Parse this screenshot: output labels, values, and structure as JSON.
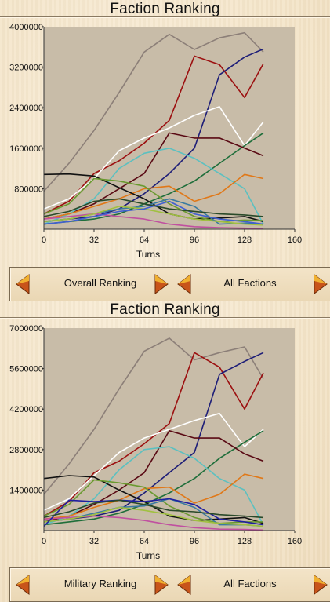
{
  "colors": {
    "plot_bg": "#c8bca8",
    "axis": "#333333"
  },
  "panels": [
    {
      "title": "Faction Ranking",
      "left_control": {
        "label": "Overall Ranking",
        "prev_icon": "triangle-left-icon",
        "next_icon": "triangle-right-icon"
      },
      "right_control": {
        "label": "All Factions",
        "prev_icon": "triangle-left-icon",
        "next_icon": "triangle-right-icon"
      }
    },
    {
      "title": "Faction Ranking",
      "left_control": {
        "label": "Military Ranking",
        "prev_icon": "triangle-left-icon",
        "next_icon": "triangle-right-icon"
      },
      "right_control": {
        "label": "All Factions",
        "prev_icon": "triangle-left-icon",
        "next_icon": "triangle-right-icon"
      }
    }
  ],
  "chart_data": [
    {
      "type": "line",
      "title": "Faction Ranking",
      "xlabel": "Turns",
      "ylabel": "",
      "xlim": [
        0,
        160
      ],
      "ylim": [
        0,
        4000000
      ],
      "xticks": [
        0,
        32,
        64,
        96,
        128,
        160
      ],
      "yticks": [
        800000,
        1600000,
        2400000,
        3200000,
        4000000
      ],
      "ytick_labels": [
        "800000",
        "1600000",
        "2400000",
        "3200000",
        "4000000"
      ],
      "x": [
        0,
        16,
        32,
        48,
        64,
        80,
        96,
        112,
        128,
        140
      ],
      "series": [
        {
          "color": "#8c7f78",
          "values": [
            750000,
            1300000,
            1950000,
            2700000,
            3500000,
            3850000,
            3550000,
            3780000,
            3880000,
            3500000
          ]
        },
        {
          "color": "#9c1010",
          "values": [
            300000,
            550000,
            1100000,
            1350000,
            1700000,
            2150000,
            3420000,
            3250000,
            2600000,
            3270000
          ]
        },
        {
          "color": "#1e1e78",
          "values": [
            150000,
            200000,
            250000,
            400000,
            700000,
            1100000,
            1600000,
            3050000,
            3400000,
            3560000
          ]
        },
        {
          "color": "#ffffff",
          "values": [
            400000,
            600000,
            1000000,
            1550000,
            1800000,
            2000000,
            2250000,
            2420000,
            1650000,
            2120000
          ]
        },
        {
          "color": "#1e6e3a",
          "values": [
            100000,
            150000,
            200000,
            300000,
            500000,
            700000,
            950000,
            1300000,
            1650000,
            1900000
          ]
        },
        {
          "color": "#5a0a14",
          "values": [
            200000,
            300000,
            500000,
            800000,
            1100000,
            1900000,
            1800000,
            1800000,
            1600000,
            1450000
          ]
        },
        {
          "color": "#5cc0c0",
          "values": [
            100000,
            300000,
            600000,
            1200000,
            1500000,
            1600000,
            1400000,
            1100000,
            800000,
            100000
          ]
        },
        {
          "color": "#e07818",
          "values": [
            200000,
            300000,
            450000,
            600000,
            800000,
            850000,
            550000,
            700000,
            1080000,
            1000000
          ]
        },
        {
          "color": "#111111",
          "values": [
            1080000,
            1090000,
            1050000,
            820000,
            600000,
            300000,
            200000,
            220000,
            250000,
            150000
          ]
        },
        {
          "color": "#6a9a30",
          "values": [
            300000,
            500000,
            1000000,
            950000,
            850000,
            500000,
            250000,
            150000,
            180000,
            170000
          ]
        },
        {
          "color": "#3a7aa0",
          "values": [
            150000,
            200000,
            300000,
            400000,
            450000,
            600000,
            450000,
            100000,
            120000,
            100000
          ]
        },
        {
          "color": "#c050a0",
          "values": [
            200000,
            250000,
            300000,
            250000,
            200000,
            100000,
            50000,
            30000,
            20000,
            10000
          ]
        },
        {
          "color": "#a0c040",
          "values": [
            150000,
            200000,
            300000,
            450000,
            400000,
            300000,
            200000,
            150000,
            100000,
            80000
          ]
        },
        {
          "color": "#4060d0",
          "values": [
            100000,
            150000,
            250000,
            350000,
            400000,
            550000,
            300000,
            200000,
            150000,
            100000
          ]
        },
        {
          "color": "#2a4a2a",
          "values": [
            250000,
            350000,
            550000,
            600000,
            500000,
            400000,
            350000,
            300000,
            280000,
            250000
          ]
        }
      ]
    },
    {
      "type": "line",
      "title": "Faction Ranking",
      "xlabel": "Turns",
      "ylabel": "",
      "xlim": [
        0,
        160
      ],
      "ylim": [
        0,
        7000000
      ],
      "xticks": [
        0,
        32,
        64,
        96,
        128,
        160
      ],
      "yticks": [
        1400000,
        2800000,
        4200000,
        5600000,
        7000000
      ],
      "ytick_labels": [
        "1400000",
        "2800000",
        "4200000",
        "5600000",
        "7000000"
      ],
      "x": [
        0,
        16,
        32,
        48,
        64,
        80,
        96,
        112,
        128,
        140
      ],
      "series": [
        {
          "color": "#8c7f78",
          "values": [
            1250000,
            2300000,
            3500000,
            4900000,
            6200000,
            6650000,
            5900000,
            6150000,
            6350000,
            5250000
          ]
        },
        {
          "color": "#9c1010",
          "values": [
            500000,
            1000000,
            2000000,
            2400000,
            3000000,
            3700000,
            6150000,
            5650000,
            4200000,
            5450000
          ]
        },
        {
          "color": "#1e1e78",
          "values": [
            300000,
            400000,
            500000,
            700000,
            1300000,
            2000000,
            2700000,
            5400000,
            5850000,
            6150000
          ]
        },
        {
          "color": "#ffffff",
          "values": [
            700000,
            1100000,
            1900000,
            2700000,
            3200000,
            3500000,
            3800000,
            4050000,
            2900000,
            3500000
          ]
        },
        {
          "color": "#1e6e3a",
          "values": [
            200000,
            300000,
            400000,
            600000,
            900000,
            1300000,
            1800000,
            2500000,
            3050000,
            3450000
          ]
        },
        {
          "color": "#5a0a14",
          "values": [
            300000,
            500000,
            900000,
            1400000,
            2000000,
            3450000,
            3200000,
            3200000,
            2650000,
            2400000
          ]
        },
        {
          "color": "#5cc0c0",
          "values": [
            200000,
            500000,
            1100000,
            2100000,
            2800000,
            2900000,
            2500000,
            1800000,
            1400000,
            200000
          ]
        },
        {
          "color": "#e07818",
          "values": [
            400000,
            500000,
            800000,
            1050000,
            1450000,
            1500000,
            950000,
            1250000,
            1950000,
            1800000
          ]
        },
        {
          "color": "#111111",
          "values": [
            1800000,
            1900000,
            1850000,
            1400000,
            1000000,
            500000,
            350000,
            400000,
            450000,
            250000
          ]
        },
        {
          "color": "#6a9a30",
          "values": [
            500000,
            900000,
            1750000,
            1650000,
            1500000,
            850000,
            450000,
            250000,
            300000,
            300000
          ]
        },
        {
          "color": "#3a7aa0",
          "values": [
            300000,
            400000,
            600000,
            800000,
            850000,
            1100000,
            800000,
            200000,
            200000,
            150000
          ]
        },
        {
          "color": "#c050a0",
          "values": [
            400000,
            450000,
            500000,
            450000,
            350000,
            200000,
            100000,
            50000,
            40000,
            20000
          ]
        },
        {
          "color": "#a0c040",
          "values": [
            300000,
            400000,
            550000,
            800000,
            700000,
            550000,
            350000,
            250000,
            200000,
            150000
          ]
        },
        {
          "color": "#2020a0",
          "values": [
            150000,
            1050000,
            1000000,
            1050000,
            1000000,
            1100000,
            900000,
            400000,
            300000,
            200000
          ]
        },
        {
          "color": "#2a4a2a",
          "values": [
            450000,
            650000,
            950000,
            1050000,
            900000,
            700000,
            650000,
            550000,
            500000,
            450000
          ]
        }
      ]
    }
  ]
}
